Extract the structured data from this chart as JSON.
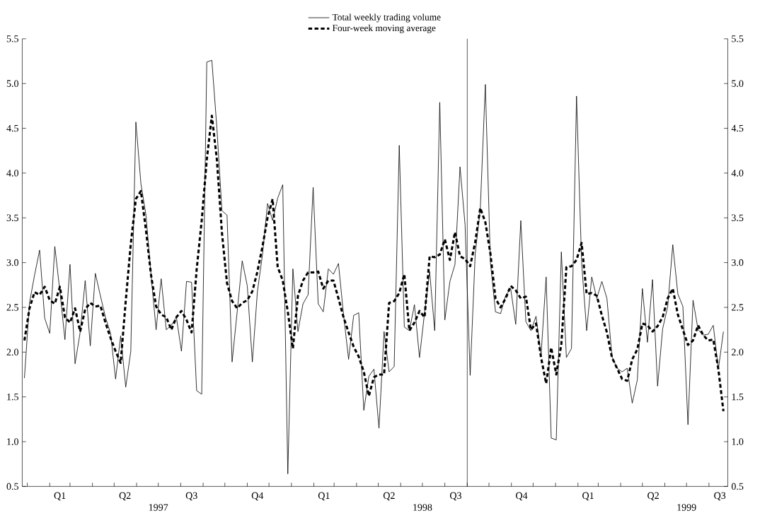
{
  "chart_data": {
    "type": "line",
    "x": [
      "1996-12-28",
      "1997-01-04",
      "1997-01-11",
      "1997-01-18",
      "1997-01-25",
      "1997-02-01",
      "1997-02-08",
      "1997-02-15",
      "1997-02-22",
      "1997-03-01",
      "1997-03-08",
      "1997-03-15",
      "1997-03-22",
      "1997-03-29",
      "1997-04-05",
      "1997-04-12",
      "1997-04-19",
      "1997-04-26",
      "1997-05-03",
      "1997-05-10",
      "1997-05-17",
      "1997-05-24",
      "1997-05-31",
      "1997-06-07",
      "1997-06-14",
      "1997-06-21",
      "1997-06-28",
      "1997-07-05",
      "1997-07-12",
      "1997-07-19",
      "1997-07-26",
      "1997-08-02",
      "1997-08-09",
      "1997-08-16",
      "1997-08-23",
      "1997-08-30",
      "1997-09-06",
      "1997-09-13",
      "1997-09-20",
      "1997-09-27",
      "1997-10-04",
      "1997-10-11",
      "1997-10-18",
      "1997-10-25",
      "1997-11-01",
      "1997-11-08",
      "1997-11-15",
      "1997-11-22",
      "1997-11-29",
      "1997-12-06",
      "1997-12-13",
      "1997-12-20",
      "1997-12-27",
      "1998-01-03",
      "1998-01-10",
      "1998-01-17",
      "1998-01-24",
      "1998-01-31",
      "1998-02-07",
      "1998-02-14",
      "1998-02-21",
      "1998-02-28",
      "1998-03-07",
      "1998-03-14",
      "1998-03-21",
      "1998-03-28",
      "1998-04-04",
      "1998-04-11",
      "1998-04-18",
      "1998-04-25",
      "1998-05-02",
      "1998-05-09",
      "1998-05-16",
      "1998-05-23",
      "1998-05-30",
      "1998-06-06",
      "1998-06-13",
      "1998-06-20",
      "1998-06-27",
      "1998-07-04",
      "1998-07-11",
      "1998-07-18",
      "1998-07-25",
      "1998-08-01",
      "1998-08-08",
      "1998-08-15",
      "1998-08-22",
      "1998-08-29",
      "1998-09-05",
      "1998-09-12",
      "1998-09-19",
      "1998-09-26",
      "1998-10-03",
      "1998-10-10",
      "1998-10-17",
      "1998-10-24",
      "1998-10-31",
      "1998-11-07",
      "1998-11-14",
      "1998-11-21",
      "1998-11-28",
      "1998-12-05",
      "1998-12-12",
      "1998-12-19",
      "1998-12-26",
      "1999-01-02",
      "1999-01-09",
      "1999-01-16",
      "1999-01-23",
      "1999-01-30",
      "1999-02-06",
      "1999-02-13",
      "1999-02-20",
      "1999-02-27",
      "1999-03-06",
      "1999-03-13",
      "1999-03-20",
      "1999-03-27",
      "1999-04-03",
      "1999-04-10",
      "1999-04-17",
      "1999-04-24",
      "1999-05-01",
      "1999-05-08",
      "1999-05-15",
      "1999-05-22",
      "1999-05-29",
      "1999-06-05",
      "1999-06-12",
      "1999-06-19",
      "1999-06-26",
      "1999-07-03",
      "1999-07-10",
      "1999-07-17",
      "1999-07-24",
      "1999-07-31",
      "1999-08-07",
      "1999-08-14",
      "1999-08-21"
    ],
    "series": [
      {
        "name": "Total weekly trading volume",
        "color": "#000000",
        "line_style": "solid",
        "values": [
          1.71,
          2.55,
          2.86,
          3.14,
          2.38,
          2.21,
          3.18,
          2.68,
          2.14,
          2.98,
          1.87,
          2.22,
          2.8,
          2.07,
          2.88,
          2.63,
          2.39,
          2.21,
          1.7,
          2.18,
          1.61,
          2.01,
          4.57,
          3.88,
          3.53,
          2.86,
          2.25,
          2.82,
          2.25,
          2.3,
          2.39,
          2.01,
          2.79,
          2.78,
          1.57,
          1.53,
          5.24,
          5.26,
          4.5,
          3.58,
          3.53,
          1.89,
          2.45,
          3.02,
          2.74,
          1.89,
          2.68,
          3.09,
          3.66,
          3.47,
          3.72,
          3.87,
          0.64,
          2.93,
          2.23,
          2.54,
          2.64,
          3.84,
          2.54,
          2.45,
          2.93,
          2.87,
          2.99,
          2.42,
          1.92,
          2.41,
          2.44,
          1.35,
          1.73,
          1.81,
          1.15,
          2.23,
          1.78,
          1.84,
          4.31,
          2.28,
          2.24,
          2.53,
          1.94,
          2.44,
          2.9,
          2.24,
          4.79,
          2.36,
          2.79,
          2.98,
          4.07,
          3.42,
          1.74,
          3.1,
          3.6,
          4.99,
          3.0,
          2.45,
          2.43,
          2.63,
          2.71,
          2.31,
          3.47,
          2.34,
          2.24,
          2.4,
          1.97,
          2.84,
          1.04,
          1.02,
          3.12,
          1.94,
          2.04,
          4.86,
          3.0,
          2.24,
          2.84,
          2.6,
          2.79,
          2.6,
          1.95,
          1.82,
          1.78,
          1.82,
          1.43,
          1.69,
          2.71,
          2.11,
          2.81,
          1.62,
          2.26,
          2.51,
          3.2,
          2.65,
          2.51,
          1.19,
          2.58,
          2.25,
          2.19,
          2.2,
          2.3,
          1.81,
          2.23
        ]
      },
      {
        "name": "Four-week moving average",
        "color": "#000000",
        "line_style": "dashed",
        "values": [
          2.13,
          2.49,
          2.67,
          2.64,
          2.73,
          2.58,
          2.54,
          2.73,
          2.39,
          2.33,
          2.49,
          2.23,
          2.48,
          2.55,
          2.51,
          2.52,
          2.33,
          2.16,
          2.01,
          1.88,
          2.57,
          3.21,
          3.71,
          3.8,
          3.36,
          2.86,
          2.51,
          2.42,
          2.39,
          2.25,
          2.39,
          2.46,
          2.36,
          2.22,
          2.92,
          3.47,
          4.15,
          4.64,
          4.15,
          3.33,
          2.77,
          2.57,
          2.49,
          2.55,
          2.58,
          2.68,
          2.9,
          3.18,
          3.5,
          3.71,
          2.95,
          2.8,
          2.45,
          2.04,
          2.63,
          2.8,
          2.89,
          2.89,
          2.9,
          2.71,
          2.8,
          2.8,
          2.6,
          2.39,
          2.22,
          2.06,
          1.95,
          1.78,
          1.51,
          1.72,
          1.75,
          1.75,
          2.55,
          2.57,
          2.66,
          2.87,
          2.24,
          2.33,
          2.46,
          2.39,
          3.07,
          3.06,
          3.09,
          3.26,
          3.03,
          3.34,
          3.07,
          3.04,
          2.96,
          3.23,
          3.61,
          3.45,
          3.1,
          2.6,
          2.5,
          2.6,
          2.74,
          2.69,
          2.6,
          2.62,
          2.25,
          2.32,
          1.94,
          1.65,
          2.05,
          1.75,
          2.09,
          2.95,
          2.96,
          3.03,
          3.22,
          2.65,
          2.66,
          2.63,
          2.41,
          2.22,
          1.94,
          1.82,
          1.7,
          1.68,
          1.92,
          2.03,
          2.32,
          2.3,
          2.23,
          2.29,
          2.39,
          2.6,
          2.71,
          2.42,
          2.25,
          2.08,
          2.13,
          2.3,
          2.19,
          2.13,
          2.14,
          1.81,
          1.34
        ]
      }
    ],
    "xlim": [
      "1996-12-25",
      "1999-08-27"
    ],
    "xticks": [
      {
        "value": "1997-01-01",
        "label": null
      },
      {
        "value": "1997-02-01",
        "label": null
      },
      {
        "value": "1997-03-01",
        "label": null
      },
      {
        "value": "1997-04-01",
        "label": null
      },
      {
        "value": "1997-05-01",
        "label": null
      },
      {
        "value": "1997-06-01",
        "label": null
      },
      {
        "value": "1997-07-01",
        "label": null
      },
      {
        "value": "1997-08-01",
        "label": null
      },
      {
        "value": "1997-09-01",
        "label": null
      },
      {
        "value": "1997-10-01",
        "label": null
      },
      {
        "value": "1997-11-01",
        "label": null
      },
      {
        "value": "1997-12-01",
        "label": null
      },
      {
        "value": "1998-01-01",
        "label": null
      },
      {
        "value": "1998-02-01",
        "label": null
      },
      {
        "value": "1998-03-01",
        "label": null
      },
      {
        "value": "1998-04-01",
        "label": null
      },
      {
        "value": "1998-05-01",
        "label": null
      },
      {
        "value": "1998-06-01",
        "label": null
      },
      {
        "value": "1998-07-01",
        "label": null
      },
      {
        "value": "1998-08-01",
        "label": null
      },
      {
        "value": "1998-09-01",
        "label": null
      },
      {
        "value": "1998-10-01",
        "label": null
      },
      {
        "value": "1998-11-01",
        "label": null
      },
      {
        "value": "1998-12-01",
        "label": null
      },
      {
        "value": "1999-01-01",
        "label": null
      },
      {
        "value": "1999-02-01",
        "label": null
      },
      {
        "value": "1999-03-01",
        "label": null
      },
      {
        "value": "1999-04-01",
        "label": null
      },
      {
        "value": "1999-05-01",
        "label": null
      },
      {
        "value": "1999-06-01",
        "label": null
      },
      {
        "value": "1999-07-01",
        "label": null
      },
      {
        "value": "1999-08-01",
        "label": null
      },
      {
        "value": "1997-02-15",
        "label": "Q1"
      },
      {
        "value": "1997-05-16",
        "label": "Q2"
      },
      {
        "value": "1997-08-16",
        "label": "Q3"
      },
      {
        "value": "1997-11-15",
        "label": "Q4"
      },
      {
        "value": "1998-02-15",
        "label": "Q1"
      },
      {
        "value": "1998-05-16",
        "label": "Q2"
      },
      {
        "value": "1998-08-16",
        "label": "Q3"
      },
      {
        "value": "1998-11-15",
        "label": "Q4"
      },
      {
        "value": "1999-02-15",
        "label": "Q1"
      },
      {
        "value": "1999-05-16",
        "label": "Q2"
      },
      {
        "value": "1999-08-16",
        "label": "Q3"
      }
    ],
    "x2lim": [
      "1996-12-25",
      "1999-08-27"
    ],
    "x2ticks": [
      {
        "value": "1997-07-01",
        "label": "1997"
      },
      {
        "value": "1998-07-01",
        "label": "1998"
      },
      {
        "value": "1999-07-01",
        "label": "1999"
      }
    ],
    "ylim": [
      0.5,
      5.5
    ],
    "yticks": [
      0.5,
      {
        "value": 1,
        "label": "1.0"
      },
      1.5,
      {
        "value": 2,
        "label": "2.0"
      },
      2.5,
      {
        "value": 3,
        "label": "3.0"
      },
      3.5,
      {
        "value": 4,
        "label": "4.0"
      },
      4.5,
      {
        "value": 5,
        "label": "5.0"
      },
      5.5
    ],
    "y2lim": [
      0.5,
      5.5
    ],
    "y2ticks": [
      0.5,
      {
        "value": 1,
        "label": "1.0"
      },
      1.5,
      {
        "value": 2,
        "label": "2.0"
      },
      2.5,
      {
        "value": 3,
        "label": "3.0"
      },
      3.5,
      {
        "value": 4,
        "label": "4.0"
      },
      4.5,
      {
        "value": 5,
        "label": "5.0"
      },
      5.5
    ],
    "ref_lines": [
      {
        "axis": "x",
        "value": "1998-09-01",
        "color": "#000000"
      }
    ],
    "legend": "top"
  }
}
